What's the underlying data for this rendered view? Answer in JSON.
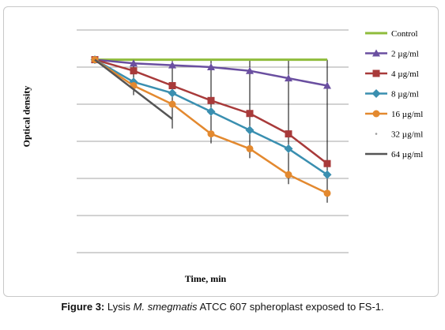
{
  "caption": {
    "label": "Figure 3:",
    "text_before": "Lysis",
    "species": "M. smegmatis",
    "text_after": "ATCC 607 spheroplast exposed to FS-1."
  },
  "chart_data": {
    "type": "line",
    "title": "",
    "xlabel": "Time, min",
    "ylabel": "Optical density",
    "ylim": [
      0,
      6
    ],
    "grid": true,
    "legend_position": "right",
    "x": [
      0,
      1,
      2,
      3,
      4,
      5,
      6
    ],
    "series": [
      {
        "name": "Control",
        "color": "#8fbc3c",
        "marker": "none",
        "values": [
          5.2,
          5.2,
          5.2,
          5.2,
          5.2,
          5.2,
          5.2
        ]
      },
      {
        "name": "2 µg/ml",
        "color": "#6a4fa0",
        "marker": "triangle",
        "values": [
          5.2,
          5.1,
          5.05,
          5.0,
          4.9,
          4.7,
          4.5
        ]
      },
      {
        "name": "4 µg/ml",
        "color": "#a83a3a",
        "marker": "square",
        "values": [
          5.2,
          4.9,
          4.5,
          4.1,
          3.75,
          3.2,
          2.4
        ]
      },
      {
        "name": "8 µg/ml",
        "color": "#3a8fb0",
        "marker": "diamond",
        "values": [
          5.2,
          4.6,
          4.3,
          3.8,
          3.3,
          2.8,
          2.1
        ]
      },
      {
        "name": "16 µg/ml",
        "color": "#e3892f",
        "marker": "circle",
        "values": [
          5.2,
          4.5,
          4.0,
          3.2,
          2.8,
          2.1,
          1.6
        ]
      },
      {
        "name": "32 µg/ml",
        "color": "#9a9a9a",
        "marker": "dot",
        "values": [
          null,
          null,
          null,
          null,
          null,
          null,
          null
        ]
      },
      {
        "name": "64 µg/ml",
        "color": "#555555",
        "marker": "none",
        "values": [
          5.2,
          null,
          3.6,
          null,
          null,
          null,
          null
        ]
      }
    ]
  }
}
